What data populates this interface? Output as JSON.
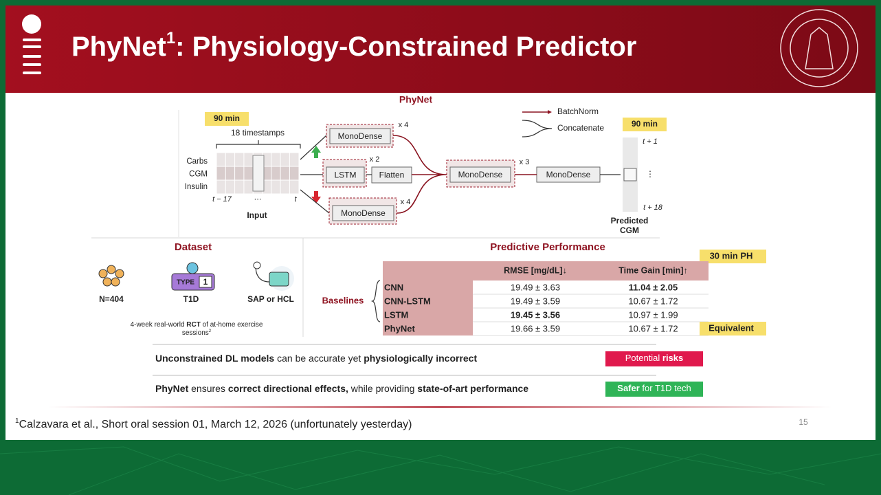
{
  "header": {
    "title": [
      {
        "text": "PhyNet"
      },
      {
        "text": "1",
        "sup": true
      },
      {
        "text": ": Physiology-Constrained Predictor"
      }
    ]
  },
  "architecture": {
    "title": "PhyNet",
    "input_window": "90 min",
    "timestamps": "18 timestamps",
    "features": [
      "Carbs",
      "CGM",
      "Insulin"
    ],
    "time_axis": [
      "t − 17",
      "⋯",
      "t"
    ],
    "input_label": "Input",
    "blocks": [
      {
        "label": "MonoDense",
        "repeat": "x 4"
      },
      {
        "label": "LSTM",
        "repeat": "x 2"
      },
      {
        "label": "Flatten"
      },
      {
        "label": "MonoDense",
        "repeat": "x 4"
      },
      {
        "label": "MonoDense",
        "repeat": "x 3"
      },
      {
        "label": "MonoDense"
      }
    ],
    "legend": [
      "BatchNorm",
      "Concatenate"
    ],
    "output_window": "90 min",
    "output_steps": [
      "t + 1",
      "⋮",
      "t + 18"
    ],
    "output_label": [
      "Predicted",
      "CGM"
    ]
  },
  "dataset": {
    "title": "Dataset",
    "items": [
      "N=404",
      "T1D",
      "SAP or HCL"
    ],
    "icon_text": [
      "TYPE",
      "1"
    ],
    "note": [
      [
        {
          "text": "4-week real-world "
        },
        {
          "text": "RCT",
          "bold": true
        },
        {
          "text": " of at-home exercise"
        }
      ],
      [
        {
          "text": "sessions"
        },
        {
          "text": "2",
          "sup": true
        }
      ]
    ]
  },
  "performance": {
    "title": "Predictive Performance",
    "horizon": "30 min PH",
    "columns": [
      "RMSE [mg/dL]↓",
      "Time Gain [min]↑"
    ],
    "rows": [
      {
        "name": "CNN",
        "cells": [
          {
            "text": "19.49 ± 3.63"
          },
          {
            "text": "11.04 ± 2.05",
            "bold": true
          }
        ]
      },
      {
        "name": "CNN-LSTM",
        "cells": [
          {
            "text": "19.49 ± 3.59"
          },
          {
            "text": "10.67 ± 1.72"
          }
        ]
      },
      {
        "name": "LSTM",
        "cells": [
          {
            "text": "19.45 ± 3.56",
            "bold": true
          },
          {
            "text": "10.97 ± 1.99"
          }
        ]
      },
      {
        "name": "PhyNet",
        "cells": [
          {
            "text": "19.66 ± 3.59"
          },
          {
            "text": "10.67 ± 1.72"
          }
        ]
      }
    ],
    "baselines_label": "Baselines",
    "equivalent_label": "Equivalent"
  },
  "takeaways": [
    {
      "text": [
        {
          "text": "Unconstrained DL models",
          "bold": true
        },
        {
          "text": " can be accurate yet "
        },
        {
          "text": "physiologically incorrect",
          "bold": true
        }
      ],
      "badge": [
        {
          "text": "Potential "
        },
        {
          "text": "risks",
          "bold": true
        }
      ],
      "color": "#e0194d"
    },
    {
      "text": [
        {
          "text": "PhyNet",
          "bold": true
        },
        {
          "text": " ensures "
        },
        {
          "text": "correct directional effects,",
          "bold": true
        },
        {
          "text": " while providing "
        },
        {
          "text": "state-of-art performance",
          "bold": true
        }
      ],
      "badge": [
        {
          "text": "Safer",
          "bold": true
        },
        {
          "text": " for T1D tech"
        }
      ],
      "color": "#2fb457"
    }
  ],
  "footer": {
    "footnote": [
      {
        "text": "1",
        "sup": true
      },
      {
        "text": "Calzavara et al., Short oral session 01, March 12, 2026 (unfortunately yesterday)"
      }
    ],
    "page_number": "15"
  }
}
